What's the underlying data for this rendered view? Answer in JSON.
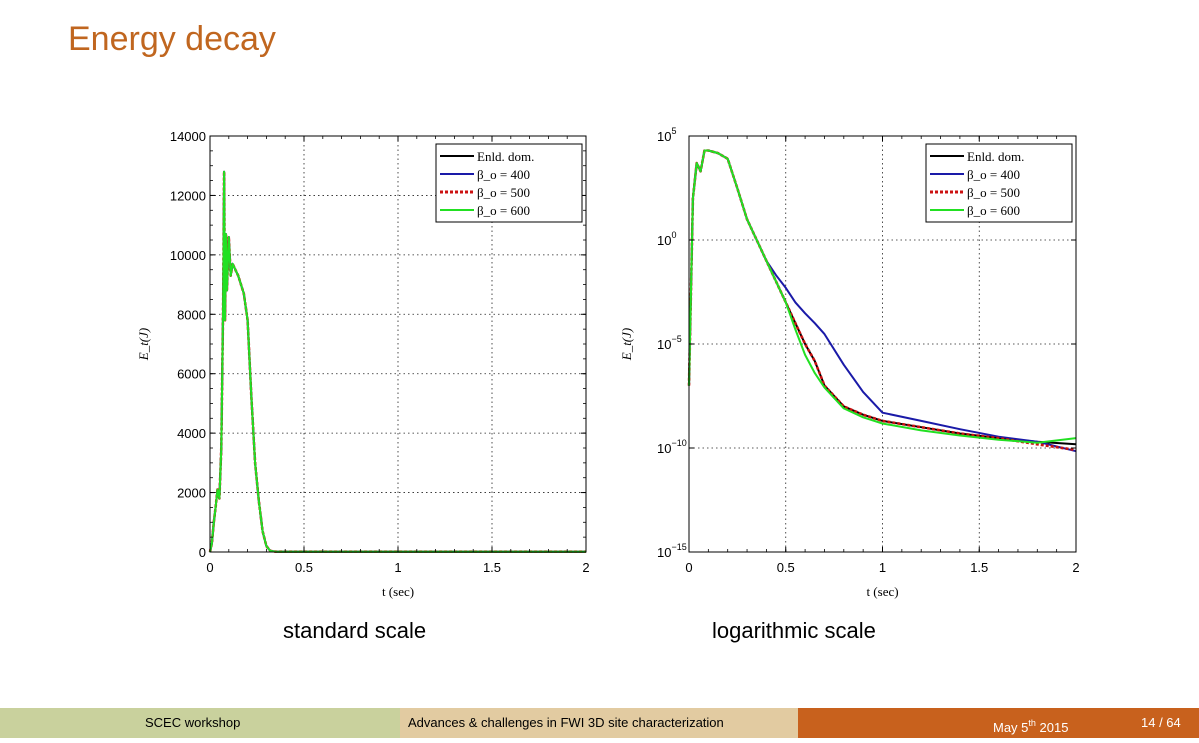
{
  "slide": {
    "title": "Energy decay",
    "captions": [
      "standard scale",
      "logarithmic scale"
    ]
  },
  "footer": {
    "left": "SCEC workshop",
    "center": "Advances & challenges in FWI 3D site characterization",
    "date_prefix": "May 5",
    "date_sup": "th",
    "date_suffix": " 2015",
    "page": "14 / 64"
  },
  "colors": {
    "title": "#c0661f",
    "footer_left": "#c9d19d",
    "footer_center": "#e2cba1",
    "footer_right": "#c8611d"
  },
  "chart_data": [
    {
      "type": "line",
      "xlabel": "t (sec)",
      "ylabel": "E_t(J)",
      "xlim": [
        0,
        2
      ],
      "ylim": [
        0,
        14000
      ],
      "yscale": "linear",
      "xticks": [
        0,
        0.5,
        1,
        1.5,
        2
      ],
      "xtick_labels": [
        "0",
        "0.5",
        "1",
        "1.5",
        "2"
      ],
      "yticks": [
        0,
        2000,
        4000,
        6000,
        8000,
        10000,
        12000,
        14000
      ],
      "ytick_labels": [
        "0",
        "2000",
        "4000",
        "6000",
        "8000",
        "10000",
        "12000",
        "14000"
      ],
      "grid": true,
      "legend_position": "top-right",
      "series": [
        {
          "name": "Enld. dom.",
          "color": "#000000",
          "dash": false,
          "x": [
            0,
            0.01,
            0.02,
            0.03,
            0.04,
            0.05,
            0.06,
            0.07,
            0.075,
            0.08,
            0.085,
            0.09,
            0.1,
            0.11,
            0.12,
            0.15,
            0.18,
            0.2,
            0.22,
            0.24,
            0.26,
            0.28,
            0.3,
            0.32,
            0.35,
            0.5,
            1,
            1.5,
            2
          ],
          "y": [
            0,
            300,
            1000,
            1500,
            2100,
            1800,
            3500,
            8500,
            12800,
            7800,
            10700,
            8800,
            10600,
            9300,
            9700,
            9300,
            8700,
            7800,
            5200,
            3000,
            1700,
            700,
            200,
            40,
            10,
            10,
            10,
            10,
            10
          ]
        },
        {
          "name": "β_o = 400",
          "color": "#1a1aa8",
          "dash": false,
          "x": [
            0,
            0.01,
            0.02,
            0.03,
            0.04,
            0.05,
            0.06,
            0.07,
            0.075,
            0.08,
            0.085,
            0.09,
            0.1,
            0.11,
            0.12,
            0.15,
            0.18,
            0.2,
            0.22,
            0.24,
            0.26,
            0.28,
            0.3,
            0.32,
            0.35,
            0.5,
            1,
            1.5,
            2
          ],
          "y": [
            0,
            300,
            1000,
            1500,
            2100,
            1800,
            3500,
            8500,
            12800,
            7800,
            10700,
            8800,
            10600,
            9300,
            9700,
            9300,
            8700,
            7800,
            5200,
            3000,
            1700,
            700,
            200,
            40,
            10,
            10,
            10,
            10,
            10
          ]
        },
        {
          "name": "β_o = 500",
          "color": "#cc1111",
          "dash": true,
          "x": [
            0,
            0.01,
            0.02,
            0.03,
            0.04,
            0.05,
            0.06,
            0.07,
            0.075,
            0.08,
            0.085,
            0.09,
            0.1,
            0.11,
            0.12,
            0.15,
            0.18,
            0.2,
            0.22,
            0.24,
            0.26,
            0.28,
            0.3,
            0.32,
            0.35,
            0.5,
            1,
            1.5,
            2
          ],
          "y": [
            0,
            300,
            1000,
            1500,
            2100,
            1800,
            3500,
            8500,
            12800,
            7800,
            10700,
            8800,
            10600,
            9300,
            9700,
            9300,
            8700,
            7800,
            5200,
            3000,
            1700,
            700,
            200,
            40,
            10,
            10,
            10,
            10,
            10
          ]
        },
        {
          "name": "β_o = 600",
          "color": "#22e022",
          "dash": false,
          "x": [
            0,
            0.01,
            0.02,
            0.03,
            0.04,
            0.05,
            0.06,
            0.07,
            0.075,
            0.08,
            0.085,
            0.09,
            0.1,
            0.11,
            0.12,
            0.15,
            0.18,
            0.2,
            0.22,
            0.24,
            0.26,
            0.28,
            0.3,
            0.32,
            0.35,
            0.5,
            1,
            1.5,
            2
          ],
          "y": [
            0,
            300,
            1000,
            1500,
            2100,
            1800,
            3500,
            8500,
            12800,
            7800,
            10700,
            8800,
            10600,
            9300,
            9700,
            9300,
            8700,
            7800,
            5200,
            3000,
            1700,
            700,
            200,
            40,
            10,
            10,
            10,
            10,
            10
          ]
        }
      ]
    },
    {
      "type": "line",
      "xlabel": "t (sec)",
      "ylabel": "E_t(J)",
      "xlim": [
        0,
        2
      ],
      "ylim": [
        1e-15,
        100000.0
      ],
      "yscale": "log",
      "xticks": [
        0,
        0.5,
        1,
        1.5,
        2
      ],
      "xtick_labels": [
        "0",
        "0.5",
        "1",
        "1.5",
        "2"
      ],
      "yticks": [
        1e-15,
        1e-10,
        1e-05,
        1,
        100000.0
      ],
      "ytick_base": [
        "10",
        "10",
        "10",
        "10",
        "10"
      ],
      "ytick_exp": [
        "−15",
        "−10",
        "−5",
        "0",
        "5"
      ],
      "grid": true,
      "legend_position": "top-right",
      "series": [
        {
          "name": "Enld. dom.",
          "color": "#000000",
          "dash": false,
          "x": [
            0,
            0.02,
            0.04,
            0.06,
            0.08,
            0.1,
            0.15,
            0.2,
            0.25,
            0.3,
            0.35,
            0.4,
            0.45,
            0.5,
            0.55,
            0.6,
            0.65,
            0.7,
            0.8,
            0.9,
            1,
            1.2,
            1.4,
            1.6,
            1.8,
            2
          ],
          "y": [
            1e-07,
            100.0,
            5000.0,
            2000.0,
            20000.0,
            20000.0,
            15000.0,
            8000.0,
            300.0,
            10.0,
            1.0,
            0.1,
            0.01,
            0.001,
            0.0001,
            1e-05,
            1.5e-06,
            1e-07,
            1e-08,
            4e-09,
            2e-09,
            1e-09,
            5e-10,
            3e-10,
            2e-10,
            1.5e-10
          ]
        },
        {
          "name": "β_o = 400",
          "color": "#1a1aa8",
          "dash": false,
          "x": [
            0,
            0.02,
            0.04,
            0.06,
            0.08,
            0.1,
            0.15,
            0.2,
            0.25,
            0.3,
            0.35,
            0.4,
            0.45,
            0.5,
            0.55,
            0.6,
            0.65,
            0.7,
            0.8,
            0.9,
            1,
            1.2,
            1.4,
            1.6,
            1.8,
            2
          ],
          "y": [
            1e-07,
            100.0,
            5000.0,
            2000.0,
            20000.0,
            20000.0,
            15000.0,
            8000.0,
            300.0,
            10.0,
            1.0,
            0.1,
            0.02,
            0.005,
            0.001,
            0.0003,
            0.0001,
            3e-05,
            1e-06,
            5e-08,
            5e-09,
            2e-09,
            8e-10,
            3.5e-10,
            2e-10,
            7e-11
          ]
        },
        {
          "name": "β_o = 500",
          "color": "#cc1111",
          "dash": true,
          "x": [
            0,
            0.02,
            0.04,
            0.06,
            0.08,
            0.1,
            0.15,
            0.2,
            0.25,
            0.3,
            0.35,
            0.4,
            0.45,
            0.5,
            0.55,
            0.6,
            0.65,
            0.7,
            0.8,
            0.9,
            1,
            1.2,
            1.4,
            1.6,
            1.8,
            2
          ],
          "y": [
            1e-07,
            100.0,
            5000.0,
            2000.0,
            20000.0,
            20000.0,
            15000.0,
            8000.0,
            300.0,
            10.0,
            1.0,
            0.1,
            0.01,
            0.001,
            0.0001,
            1e-05,
            1.5e-06,
            1e-07,
            1e-08,
            4e-09,
            2e-09,
            1e-09,
            5e-10,
            3e-10,
            1.5e-10,
            8e-11
          ]
        },
        {
          "name": "β_o = 600",
          "color": "#22e022",
          "dash": false,
          "x": [
            0,
            0.02,
            0.04,
            0.06,
            0.08,
            0.1,
            0.15,
            0.2,
            0.25,
            0.3,
            0.35,
            0.4,
            0.45,
            0.5,
            0.55,
            0.6,
            0.65,
            0.7,
            0.8,
            0.9,
            1,
            1.2,
            1.4,
            1.6,
            1.8,
            2
          ],
          "y": [
            1e-07,
            100.0,
            5000.0,
            2000.0,
            20000.0,
            20000.0,
            15000.0,
            8000.0,
            300.0,
            10.0,
            1.0,
            0.1,
            0.01,
            0.001,
            5e-05,
            3e-06,
            4e-07,
            8e-08,
            8e-09,
            3e-09,
            1.5e-09,
            7e-10,
            4e-10,
            2.5e-10,
            1.8e-10,
            3e-10
          ]
        }
      ]
    }
  ]
}
